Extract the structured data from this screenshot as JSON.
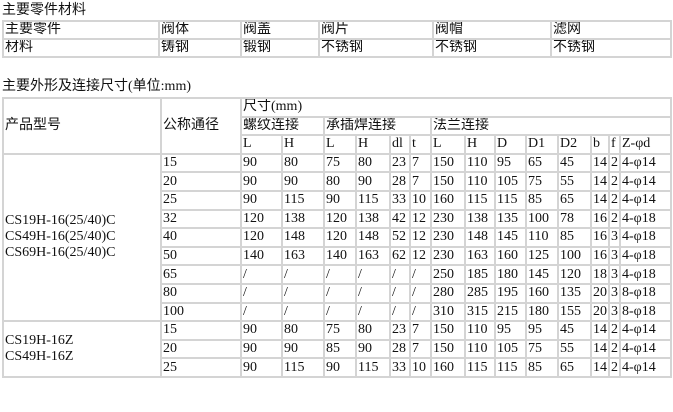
{
  "materials_title": "主要零件材料",
  "materials_table": {
    "rows": [
      [
        "主要零件",
        "阀体",
        "阀盖",
        "阀片",
        "阀帽",
        "滤网"
      ],
      [
        "材料",
        "铸钢",
        "锻钢",
        "不锈钢",
        "不锈钢",
        "不锈钢"
      ]
    ]
  },
  "dimensions_title": "主要外形及连接尺寸(单位:mm)",
  "dimensions_table": {
    "header_model": "产品型号",
    "header_dn": "公称通径",
    "header_size": "尺寸(mm)",
    "groups": [
      "螺纹连接",
      "承插焊连接",
      "法兰连接"
    ],
    "columns": [
      "L",
      "H",
      "L",
      "H",
      "dl",
      "t",
      "L",
      "H",
      "D",
      "D1",
      "D2",
      "b",
      "f",
      "Z-φd"
    ],
    "sections": [
      {
        "models": [
          "CS19H-16(25/40)C",
          "CS49H-16(25/40)C",
          "CS69H-16(25/40)C"
        ],
        "rows": [
          [
            "15",
            "90",
            "80",
            "75",
            "80",
            "23",
            "7",
            "150",
            "110",
            "95",
            "65",
            "45",
            "14",
            "2",
            "4-φ14"
          ],
          [
            "20",
            "90",
            "90",
            "80",
            "90",
            "28",
            "7",
            "150",
            "110",
            "105",
            "75",
            "55",
            "14",
            "2",
            "4-φ14"
          ],
          [
            "25",
            "90",
            "115",
            "90",
            "115",
            "33",
            "10",
            "160",
            "115",
            "115",
            "85",
            "65",
            "14",
            "2",
            "4-φ14"
          ],
          [
            "32",
            "120",
            "138",
            "120",
            "138",
            "42",
            "12",
            "230",
            "138",
            "135",
            "100",
            "78",
            "16",
            "2",
            "4-φ18"
          ],
          [
            "40",
            "120",
            "148",
            "120",
            "148",
            "52",
            "12",
            "230",
            "148",
            "145",
            "110",
            "85",
            "16",
            "3",
            "4-φ18"
          ],
          [
            "50",
            "140",
            "163",
            "140",
            "163",
            "62",
            "12",
            "230",
            "163",
            "160",
            "125",
            "100",
            "16",
            "3",
            "4-φ18"
          ],
          [
            "65",
            "/",
            "/",
            "/",
            "/",
            "/",
            "/",
            "250",
            "185",
            "180",
            "145",
            "120",
            "18",
            "3",
            "4-φ18"
          ],
          [
            "80",
            "/",
            "/",
            "/",
            "/",
            "/",
            "/",
            "280",
            "285",
            "195",
            "160",
            "135",
            "20",
            "3",
            "8-φ18"
          ],
          [
            "100",
            "/",
            "/",
            "/",
            "/",
            "/",
            "/",
            "310",
            "315",
            "215",
            "180",
            "155",
            "20",
            "3",
            "8-φ18"
          ]
        ]
      },
      {
        "models": [
          "CS19H-16Z",
          "CS49H-16Z"
        ],
        "rows": [
          [
            "15",
            "90",
            "80",
            "75",
            "80",
            "23",
            "7",
            "150",
            "110",
            "95",
            "95",
            "45",
            "14",
            "2",
            "4-φ14"
          ],
          [
            "20",
            "90",
            "90",
            "85",
            "90",
            "28",
            "7",
            "150",
            "110",
            "105",
            "75",
            "55",
            "14",
            "2",
            "4-φ14"
          ],
          [
            "25",
            "90",
            "115",
            "90",
            "115",
            "33",
            "10",
            "160",
            "115",
            "115",
            "85",
            "65",
            "14",
            "2",
            "4-φ14"
          ]
        ]
      }
    ]
  }
}
